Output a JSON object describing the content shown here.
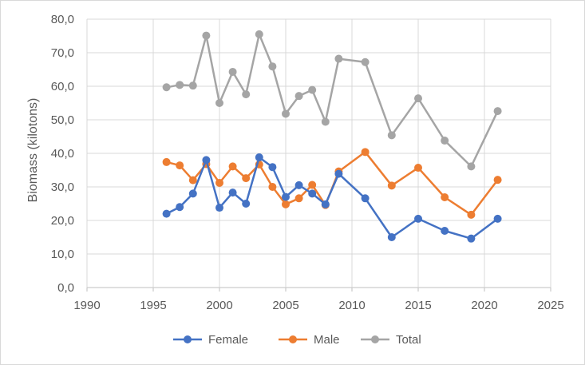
{
  "chart_data": {
    "type": "line",
    "xlabel": "",
    "ylabel": "Biomass (kilotons)",
    "xlim": [
      1990,
      2025
    ],
    "ylim": [
      0,
      80
    ],
    "x_ticks": [
      1990,
      1995,
      2000,
      2005,
      2010,
      2015,
      2020,
      2025
    ],
    "y_ticks": [
      "0,0",
      "10,0",
      "20,0",
      "30,0",
      "40,0",
      "50,0",
      "60,0",
      "70,0",
      "80,0"
    ],
    "grid": true,
    "legend_position": "bottom",
    "series": [
      {
        "name": "Female",
        "color": "#4472c4",
        "x": [
          1996,
          1997,
          1998,
          1999,
          2000,
          2001,
          2002,
          2003,
          2004,
          2005,
          2006,
          2007,
          2008,
          2009,
          2011,
          2013,
          2015,
          2017,
          2019,
          2021
        ],
        "values": [
          22.0,
          24.0,
          28.0,
          38.0,
          23.8,
          28.3,
          25.0,
          38.8,
          35.9,
          27.0,
          30.5,
          28.0,
          24.8,
          33.9,
          26.6,
          15.0,
          20.5,
          16.9,
          14.6,
          20.5
        ]
      },
      {
        "name": "Male",
        "color": "#ed7d31",
        "x": [
          1996,
          1997,
          1998,
          1999,
          2000,
          2001,
          2002,
          2003,
          2004,
          2005,
          2006,
          2007,
          2008,
          2009,
          2011,
          2013,
          2015,
          2017,
          2019,
          2021
        ],
        "values": [
          37.4,
          36.4,
          32.0,
          36.8,
          31.2,
          36.1,
          32.6,
          36.7,
          30.0,
          24.8,
          26.6,
          30.6,
          24.6,
          34.6,
          40.4,
          30.4,
          35.7,
          26.9,
          21.7,
          32.1
        ]
      },
      {
        "name": "Total",
        "color": "#a5a5a5",
        "x": [
          1996,
          1997,
          1998,
          1999,
          2000,
          2001,
          2002,
          2003,
          2004,
          2005,
          2006,
          2007,
          2008,
          2009,
          2011,
          2013,
          2015,
          2017,
          2019,
          2021
        ],
        "values": [
          59.7,
          60.4,
          60.2,
          75.1,
          55.0,
          64.3,
          57.6,
          75.5,
          65.9,
          51.8,
          57.1,
          58.9,
          49.4,
          68.2,
          67.2,
          45.4,
          56.4,
          43.8,
          36.1,
          52.6
        ]
      }
    ]
  }
}
